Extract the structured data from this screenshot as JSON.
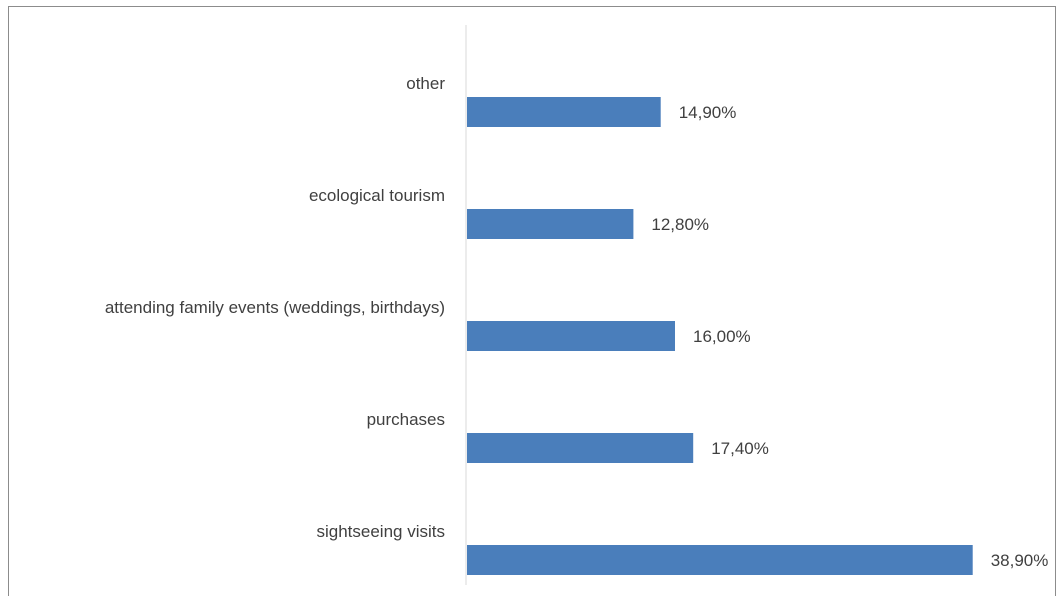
{
  "chart_data": {
    "type": "bar",
    "orientation": "horizontal",
    "categories": [
      "other",
      "ecological tourism",
      "attending family events (weddings, birthdays)",
      "purchases",
      "sightseeing visits"
    ],
    "values": [
      14.9,
      12.8,
      16.0,
      17.4,
      38.9
    ],
    "value_labels": [
      "14,90%",
      "12,80%",
      "16,00%",
      "17,40%",
      "38,90%"
    ],
    "xlim": [
      0,
      40
    ],
    "grid": false,
    "bar_color": "#4a7ebb",
    "axis_color": "#d9d9d9",
    "text_color": "#404040",
    "legend": "none"
  }
}
